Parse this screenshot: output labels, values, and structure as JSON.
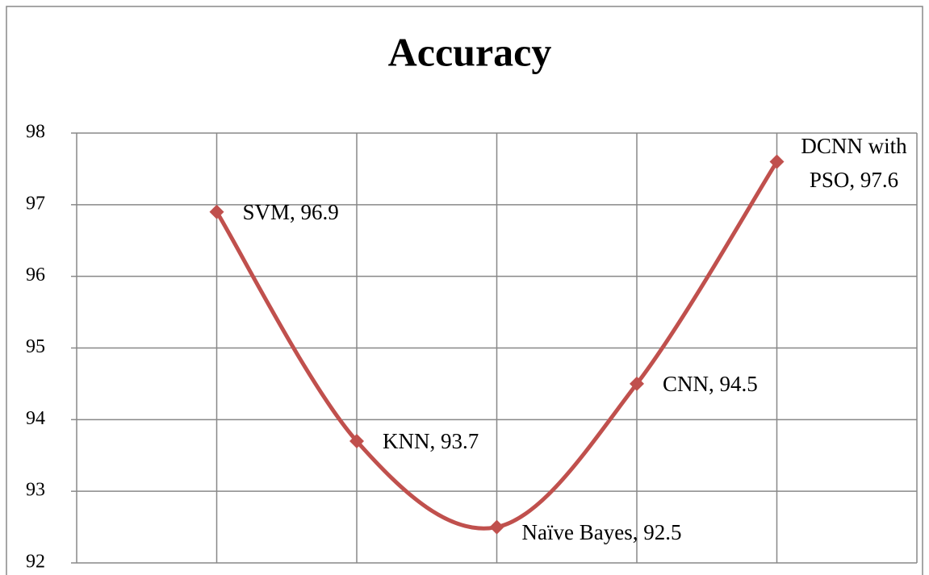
{
  "chart_data": {
    "type": "line",
    "title": "Accuracy",
    "values": [
      96.9,
      93.7,
      92.5,
      94.5,
      97.6
    ],
    "value_labels": [
      "SVM, 96.9",
      "KNN, 93.7",
      "Naïve Bayes, 92.5",
      "CNN, 94.5",
      "DCNN with PSO, 97.6"
    ],
    "color": "#c0504d",
    "smooth": true,
    "grid": true,
    "ylim": [
      92,
      98
    ],
    "yticks": [
      92,
      93,
      94,
      95,
      96,
      97,
      98
    ]
  }
}
